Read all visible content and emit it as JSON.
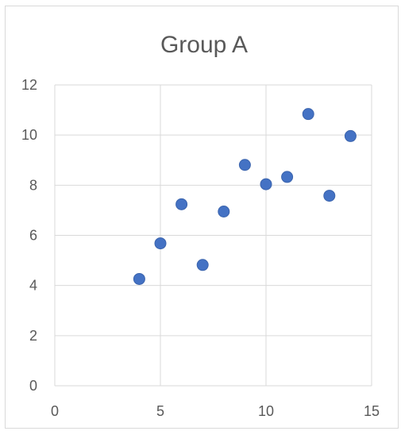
{
  "chart_data": {
    "type": "scatter",
    "title": "Group A",
    "xlabel": "",
    "ylabel": "",
    "xlim": [
      0,
      15
    ],
    "ylim": [
      0,
      12
    ],
    "x_ticks": [
      0,
      5,
      10,
      15
    ],
    "y_ticks": [
      0,
      2,
      4,
      6,
      8,
      10,
      12
    ],
    "grid": true,
    "legend": "none",
    "marker_color": "#4472c4",
    "series": [
      {
        "points": [
          {
            "x": 4,
            "y": 4.26
          },
          {
            "x": 5,
            "y": 5.68
          },
          {
            "x": 6,
            "y": 7.24
          },
          {
            "x": 7,
            "y": 4.82
          },
          {
            "x": 8,
            "y": 6.95
          },
          {
            "x": 9,
            "y": 8.81
          },
          {
            "x": 10,
            "y": 8.04
          },
          {
            "x": 11,
            "y": 8.33
          },
          {
            "x": 12,
            "y": 10.84
          },
          {
            "x": 13,
            "y": 7.58
          },
          {
            "x": 14,
            "y": 9.96
          }
        ]
      }
    ]
  }
}
